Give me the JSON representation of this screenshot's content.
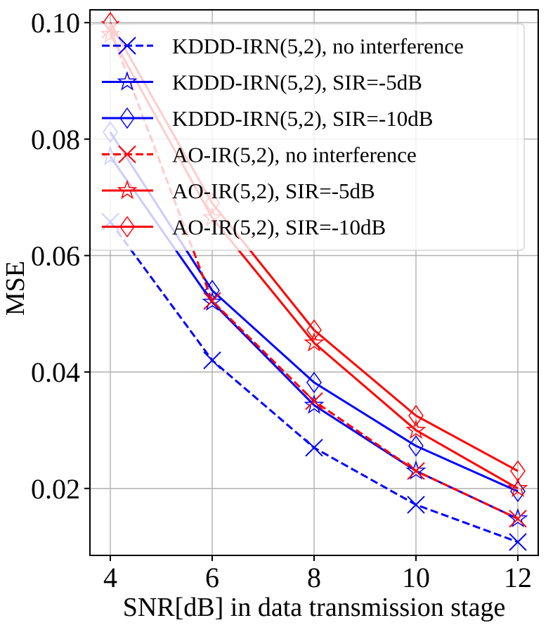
{
  "chart_data": {
    "type": "line",
    "title": "",
    "xlabel": "SNR[dB] in data transmission stage",
    "ylabel": "MSE",
    "x": [
      4,
      6,
      8,
      10,
      12
    ],
    "xticks": [
      4,
      6,
      8,
      10,
      12
    ],
    "xtick_labels": [
      "4",
      "6",
      "8",
      "10",
      "12"
    ],
    "yticks": [
      0.02,
      0.04,
      0.06,
      0.08,
      0.1
    ],
    "ytick_labels": [
      "0.02",
      "0.04",
      "0.06",
      "0.08",
      "0.10"
    ],
    "xlim": [
      3.6,
      12.4
    ],
    "ylim": [
      0.0085,
      0.1022
    ],
    "grid": true,
    "legend_position": "top-right",
    "series": [
      {
        "name": "KDDD-IRN(5,2), no interference",
        "color": "#0000ff",
        "dash": "dashed",
        "marker": "x",
        "values": [
          0.0658,
          0.042,
          0.027,
          0.0172,
          0.0108
        ]
      },
      {
        "name": "KDDD-IRN(5,2), SIR=-5dB",
        "color": "#0000ff",
        "dash": "solid",
        "marker": "star",
        "values": [
          0.077,
          0.052,
          0.0343,
          0.023,
          0.0148
        ]
      },
      {
        "name": "KDDD-IRN(5,2), SIR=-10dB",
        "color": "#0000ff",
        "dash": "solid",
        "marker": "diamond",
        "values": [
          0.0812,
          0.054,
          0.0382,
          0.0273,
          0.0195
        ]
      },
      {
        "name": "AO-IR(5,2), no interference",
        "color": "#ff0000",
        "dash": "dashed",
        "marker": "x",
        "values": [
          0.0988,
          0.0522,
          0.035,
          0.023,
          0.0148
        ]
      },
      {
        "name": "AO-IR(5,2), SIR=-5dB",
        "color": "#ff0000",
        "dash": "solid",
        "marker": "star",
        "values": [
          0.098,
          0.0665,
          0.045,
          0.03,
          0.02
        ]
      },
      {
        "name": "AO-IR(5,2), SIR=-10dB",
        "color": "#ff0000",
        "dash": "solid",
        "marker": "diamond",
        "values": [
          0.1,
          0.069,
          0.0472,
          0.0325,
          0.023
        ]
      }
    ]
  }
}
